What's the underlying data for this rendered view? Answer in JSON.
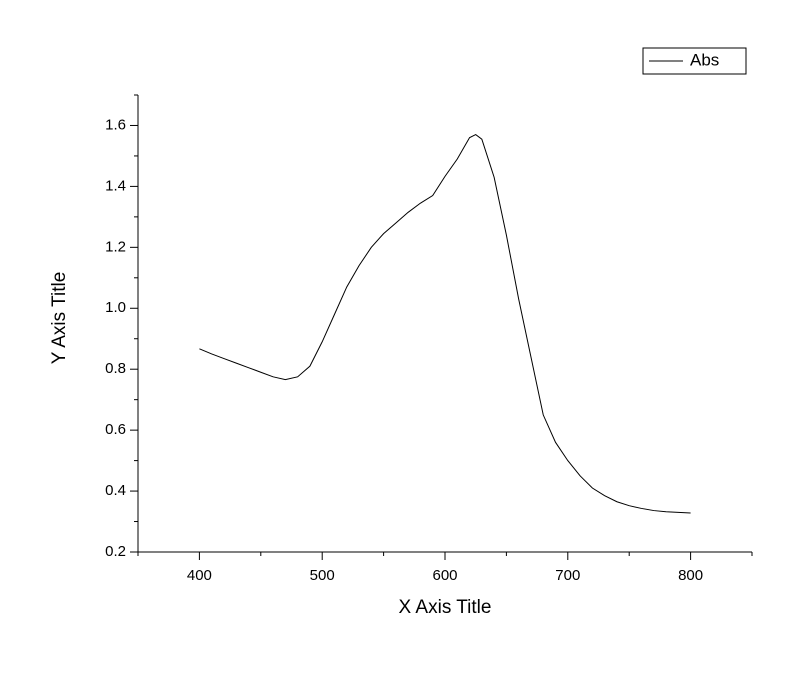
{
  "chart_data": {
    "type": "line",
    "x_label": "X Axis Title",
    "y_label": "Y Axis Title",
    "x": [
      400,
      410,
      420,
      430,
      440,
      450,
      460,
      470,
      480,
      490,
      500,
      510,
      520,
      530,
      540,
      550,
      560,
      570,
      580,
      590,
      600,
      610,
      620,
      625,
      630,
      640,
      650,
      660,
      670,
      680,
      690,
      700,
      710,
      720,
      730,
      740,
      750,
      760,
      770,
      780,
      790,
      800
    ],
    "series": [
      {
        "name": "Abs",
        "color": "#000000",
        "values": [
          0.867,
          0.85,
          0.835,
          0.82,
          0.805,
          0.79,
          0.775,
          0.766,
          0.775,
          0.81,
          0.89,
          0.98,
          1.07,
          1.14,
          1.2,
          1.245,
          1.28,
          1.315,
          1.345,
          1.37,
          1.433,
          1.49,
          1.56,
          1.57,
          1.555,
          1.43,
          1.24,
          1.03,
          0.84,
          0.65,
          0.56,
          0.5,
          0.45,
          0.41,
          0.385,
          0.365,
          0.352,
          0.343,
          0.336,
          0.332,
          0.33,
          0.328
        ]
      }
    ],
    "xlim": [
      350,
      850
    ],
    "xticks": [
      400,
      500,
      600,
      700,
      800
    ],
    "xminorticks": [
      350,
      450,
      550,
      650,
      750,
      850
    ],
    "ylim": [
      0.2,
      1.7
    ],
    "yticks": [
      0.2,
      0.4,
      0.6,
      0.8,
      {
        "value": 1,
        "label": "1.0"
      },
      1.2,
      1.4,
      1.6
    ],
    "yminorticks": [
      0.3,
      0.5,
      0.7,
      0.9,
      1.1,
      1.3,
      1.5,
      1.7
    ],
    "grid": false,
    "legend": "top-right"
  }
}
